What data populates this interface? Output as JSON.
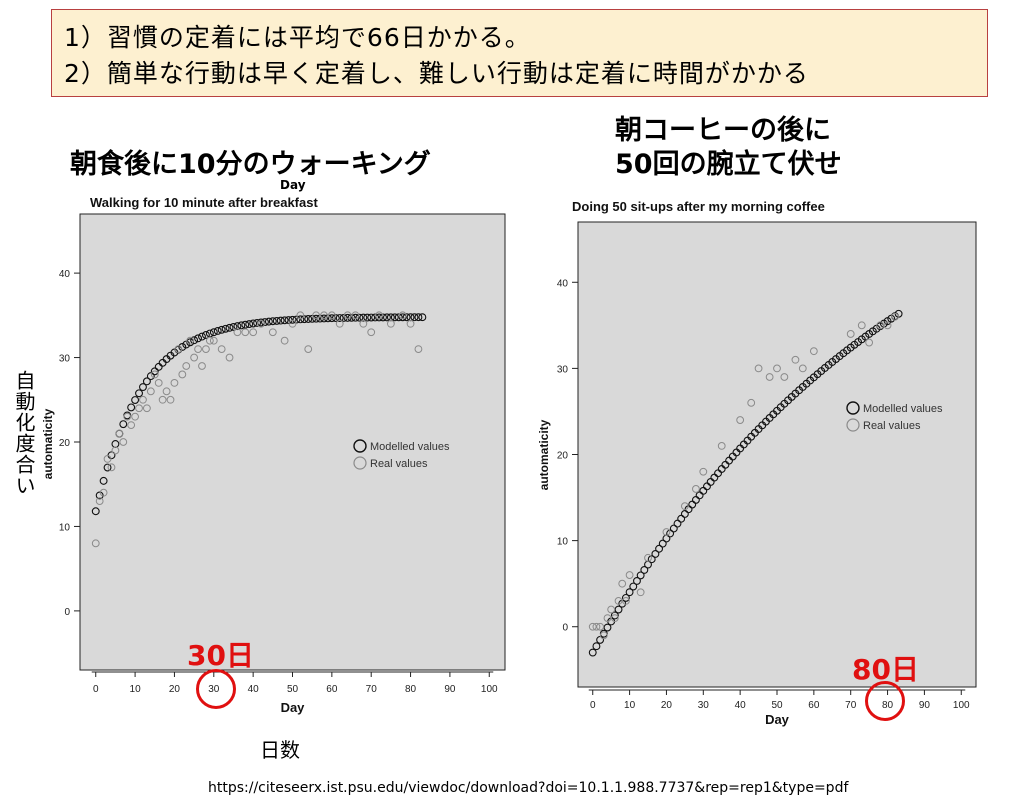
{
  "header": {
    "line1": "1）習慣の定着には平均で66日かかる。",
    "line2": "2）簡単な行動は早く定着し、難しい行動は定着に時間がかかる"
  },
  "left_title_jp": "朝食後に10分のウォーキング",
  "right_title_jp_line1": "朝コーヒーの後に",
  "right_title_jp_line2": "50回の腕立て伏せ",
  "left_day_top": "Day",
  "ylabel_jp": "自動化度合い",
  "xlabel_jp": "日数",
  "left_marker_label": "30日",
  "right_marker_label": "80日",
  "source": "https://citeseerx.ist.psu.edu/viewdoc/download?doi=10.1.1.988.7737&rep=rep1&type=pdf",
  "chart_data": [
    {
      "type": "scatter",
      "title": "Walking for 10 minute after breakfast",
      "xlabel": "Day",
      "ylabel": "automaticity",
      "xlim": [
        -4,
        104
      ],
      "ylim": [
        -7,
        47
      ],
      "xticks": [
        0,
        10,
        20,
        30,
        40,
        50,
        60,
        70,
        80,
        90,
        100
      ],
      "yticks": [
        0,
        10,
        20,
        30,
        40
      ],
      "legend": [
        "Modelled values",
        "Real values"
      ],
      "model": {
        "form": "asymptotic",
        "start": 11.8,
        "asymptote": 34.8,
        "rate": 0.085,
        "x_max": 83
      },
      "series": [
        {
          "name": "Real values",
          "points": [
            [
              0,
              8
            ],
            [
              1,
              13
            ],
            [
              2,
              14
            ],
            [
              3,
              18
            ],
            [
              4,
              17
            ],
            [
              5,
              19
            ],
            [
              6,
              21
            ],
            [
              7,
              20
            ],
            [
              8,
              23
            ],
            [
              9,
              22
            ],
            [
              10,
              23
            ],
            [
              11,
              24
            ],
            [
              12,
              25
            ],
            [
              13,
              24
            ],
            [
              14,
              26
            ],
            [
              15,
              28
            ],
            [
              16,
              27
            ],
            [
              17,
              25
            ],
            [
              18,
              26
            ],
            [
              19,
              25
            ],
            [
              20,
              27
            ],
            [
              21,
              31
            ],
            [
              22,
              28
            ],
            [
              23,
              29
            ],
            [
              24,
              32
            ],
            [
              25,
              30
            ],
            [
              26,
              31
            ],
            [
              27,
              29
            ],
            [
              28,
              31
            ],
            [
              29,
              32
            ],
            [
              30,
              32
            ],
            [
              32,
              31
            ],
            [
              34,
              30
            ],
            [
              36,
              33
            ],
            [
              38,
              33
            ],
            [
              40,
              33
            ],
            [
              42,
              34
            ],
            [
              45,
              33
            ],
            [
              48,
              32
            ],
            [
              50,
              34
            ],
            [
              52,
              35
            ],
            [
              54,
              31
            ],
            [
              56,
              35
            ],
            [
              58,
              35
            ],
            [
              60,
              35
            ],
            [
              62,
              34
            ],
            [
              64,
              35
            ],
            [
              66,
              35
            ],
            [
              68,
              34
            ],
            [
              70,
              33
            ],
            [
              72,
              35
            ],
            [
              75,
              34
            ],
            [
              78,
              35
            ],
            [
              80,
              34
            ],
            [
              82,
              31
            ]
          ]
        }
      ]
    },
    {
      "type": "scatter",
      "title": "Doing 50 sit-ups after my morning coffee",
      "xlabel": "Day",
      "ylabel": "automaticity",
      "xlim": [
        -4,
        104
      ],
      "ylim": [
        -7,
        47
      ],
      "xticks": [
        0,
        10,
        20,
        30,
        40,
        50,
        60,
        70,
        80,
        90,
        100
      ],
      "yticks": [
        0,
        10,
        20,
        30,
        40
      ],
      "legend": [
        "Modelled values",
        "Real values"
      ],
      "model": {
        "form": "asymptotic",
        "start": -3,
        "asymptote": 60,
        "rate": 0.0118,
        "x_max": 83
      },
      "series": [
        {
          "name": "Real values",
          "points": [
            [
              0,
              0
            ],
            [
              1,
              0
            ],
            [
              2,
              0
            ],
            [
              3,
              -1
            ],
            [
              4,
              1
            ],
            [
              5,
              2
            ],
            [
              6,
              1
            ],
            [
              7,
              3
            ],
            [
              8,
              5
            ],
            [
              9,
              3
            ],
            [
              10,
              6
            ],
            [
              13,
              4
            ],
            [
              15,
              8
            ],
            [
              20,
              11
            ],
            [
              25,
              14
            ],
            [
              28,
              16
            ],
            [
              30,
              18
            ],
            [
              35,
              21
            ],
            [
              40,
              24
            ],
            [
              43,
              26
            ],
            [
              45,
              30
            ],
            [
              48,
              29
            ],
            [
              50,
              30
            ],
            [
              52,
              29
            ],
            [
              55,
              31
            ],
            [
              57,
              30
            ],
            [
              60,
              32
            ],
            [
              70,
              34
            ],
            [
              73,
              35
            ],
            [
              75,
              33
            ],
            [
              78,
              35
            ],
            [
              80,
              35
            ],
            [
              82,
              36
            ]
          ]
        }
      ]
    }
  ]
}
